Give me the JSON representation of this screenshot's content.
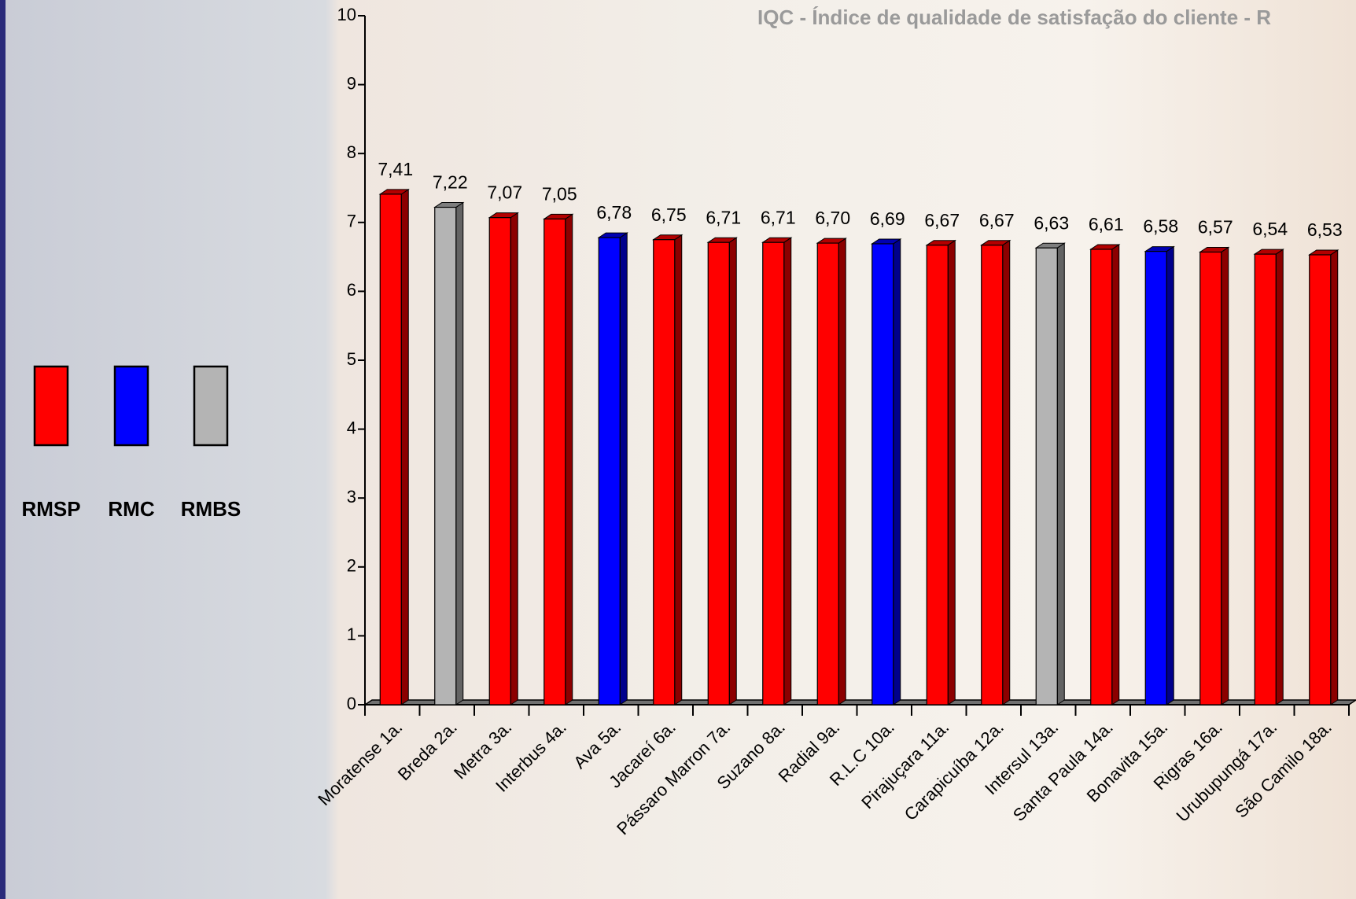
{
  "chart_data": {
    "type": "bar3d",
    "title": "IQC - Índice de qualidade de satisfação do cliente - R",
    "categories": [
      "Moratense 1a.",
      "Breda 2a.",
      "Metra 3a.",
      "Interbus 4a.",
      "Ava 5a.",
      "Jacareí 6a.",
      "Pássaro Marron 7a.",
      "Suzano 8a.",
      "Radial 9a.",
      "R.L.C 10a.",
      "Pirajuçara 11a.",
      "Carapicuíba 12a.",
      "Intersul 13a.",
      "Santa Paula 14a.",
      "Bonavita 15a.",
      "Rigras 16a.",
      "Urubupungá 17a.",
      "São Camilo 18a."
    ],
    "values": [
      7.41,
      7.22,
      7.07,
      7.05,
      6.78,
      6.75,
      6.71,
      6.71,
      6.7,
      6.69,
      6.67,
      6.67,
      6.63,
      6.61,
      6.58,
      6.57,
      6.54,
      6.53
    ],
    "value_labels": [
      "7,41",
      "7,22",
      "7,07",
      "7,05",
      "6,78",
      "6,75",
      "6,71",
      "6,71",
      "6,70",
      "6,69",
      "6,67",
      "6,67",
      "6,63",
      "6,61",
      "6,58",
      "6,57",
      "6,54",
      "6,53"
    ],
    "colors": [
      "#ff0000",
      "#b4b4b4",
      "#ff0000",
      "#ff0000",
      "#0000ff",
      "#ff0000",
      "#ff0000",
      "#ff0000",
      "#ff0000",
      "#0000ff",
      "#ff0000",
      "#ff0000",
      "#b4b4b4",
      "#ff0000",
      "#0000ff",
      "#ff0000",
      "#ff0000",
      "#ff0000"
    ],
    "legend": [
      {
        "name": "RMSP",
        "color": "#ff0000"
      },
      {
        "name": "RMC",
        "color": "#0000ff"
      },
      {
        "name": "RMBS",
        "color": "#b4b4b4"
      }
    ],
    "ylim": [
      0,
      10
    ],
    "yticks": [
      0,
      1,
      2,
      3,
      4,
      5,
      6,
      7,
      8,
      9,
      10
    ]
  }
}
